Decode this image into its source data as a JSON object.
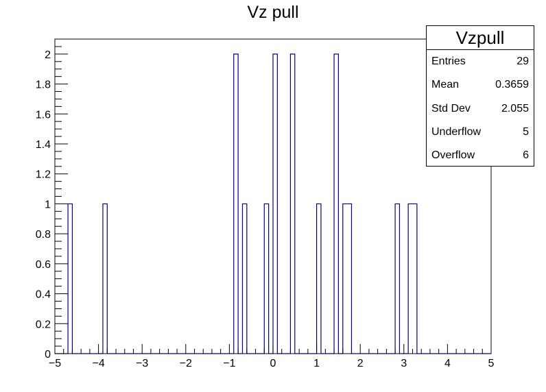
{
  "chart_data": {
    "type": "bar",
    "title": "Vz pull",
    "xlabel": "",
    "ylabel": "",
    "xlim": [
      -5,
      5
    ],
    "ylim": [
      0,
      2.1
    ],
    "bin_width": 0.1,
    "xticks": [
      "-5",
      "-4",
      "-3",
      "-2",
      "-1",
      "0",
      "1",
      "2",
      "3",
      "4",
      "5"
    ],
    "yticks": [
      "0",
      "0.2",
      "0.4",
      "0.6",
      "0.8",
      "1",
      "1.2",
      "1.4",
      "1.6",
      "1.8",
      "2"
    ],
    "bins": [
      {
        "x": -4.7,
        "value": 1
      },
      {
        "x": -3.9,
        "value": 1
      },
      {
        "x": -0.9,
        "value": 2
      },
      {
        "x": -0.7,
        "value": 1
      },
      {
        "x": -0.2,
        "value": 1
      },
      {
        "x": 0.0,
        "value": 2
      },
      {
        "x": 0.4,
        "value": 2
      },
      {
        "x": 1.0,
        "value": 1
      },
      {
        "x": 1.4,
        "value": 2
      },
      {
        "x": 1.6,
        "value": 1
      },
      {
        "x": 1.7,
        "value": 1
      },
      {
        "x": 2.8,
        "value": 1
      },
      {
        "x": 3.1,
        "value": 1
      },
      {
        "x": 3.2,
        "value": 1
      }
    ],
    "line_color": "#000080",
    "stats": {
      "name": "Vzpull",
      "rows": [
        {
          "label": "Entries",
          "value": "29"
        },
        {
          "label": "Mean",
          "value": "0.3659"
        },
        {
          "label": "Std Dev",
          "value": "2.055"
        },
        {
          "label": "Underflow",
          "value": "5"
        },
        {
          "label": "Overflow",
          "value": "6"
        }
      ]
    }
  }
}
